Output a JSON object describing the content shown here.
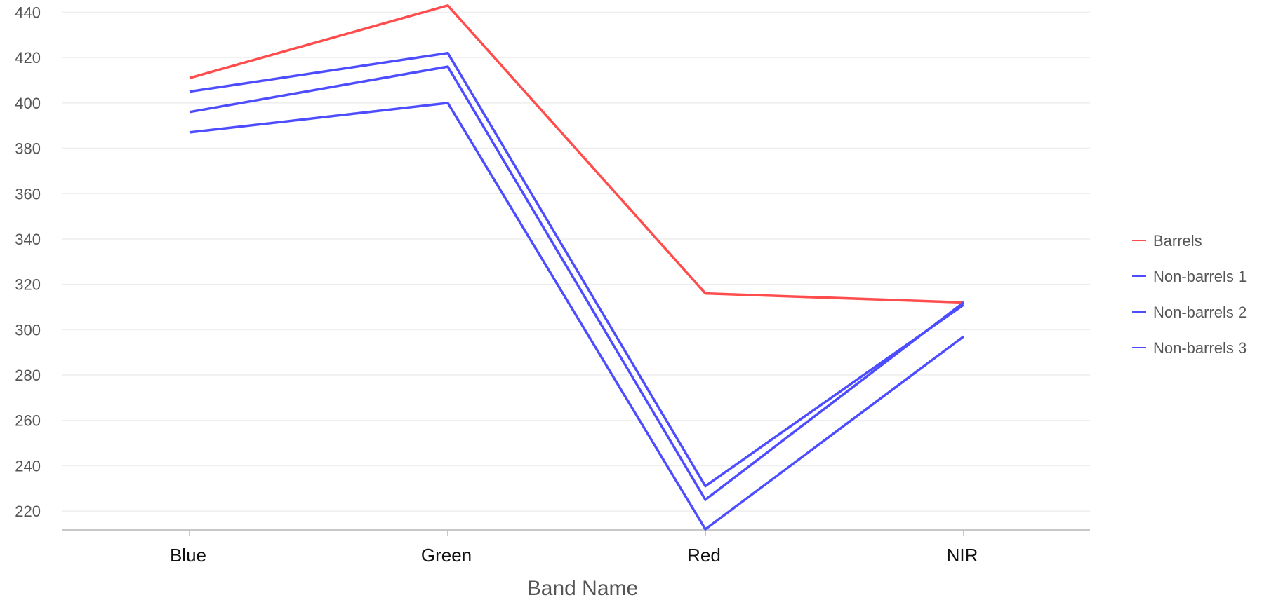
{
  "chart_data": {
    "type": "line",
    "title": "",
    "xlabel": "Band Name",
    "ylabel": "",
    "categories": [
      "Blue",
      "Green",
      "Red",
      "NIR"
    ],
    "ylim": [
      212,
      442
    ],
    "yticks": [
      220,
      240,
      260,
      280,
      300,
      320,
      340,
      360,
      380,
      400,
      420,
      440
    ],
    "grid": "horizontal",
    "legend_position": "right",
    "series": [
      {
        "name": "Barrels",
        "color": "#ff4d4d",
        "values": [
          411,
          443,
          316,
          312
        ]
      },
      {
        "name": "Non-barrels 1",
        "color": "#4d4dff",
        "values": [
          405,
          422,
          231,
          311
        ]
      },
      {
        "name": "Non-barrels 2",
        "color": "#4d4dff",
        "values": [
          396,
          416,
          225,
          312
        ]
      },
      {
        "name": "Non-barrels 3",
        "color": "#4d4dff",
        "values": [
          387,
          400,
          212,
          297
        ]
      }
    ]
  }
}
